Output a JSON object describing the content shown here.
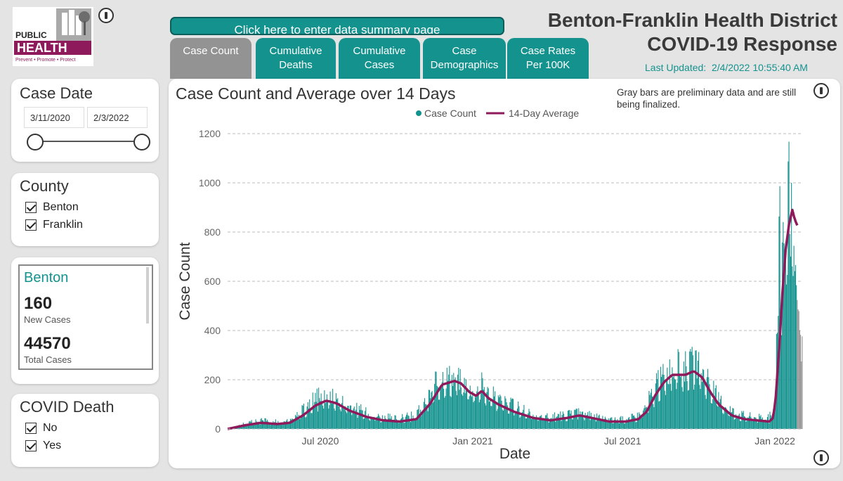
{
  "header": {
    "title_line1": "Benton-Franklin Health District",
    "title_line2": "COVID-19 Response",
    "last_updated_label": "Last Updated:",
    "last_updated_value": "2/4/2022 10:55:40 AM",
    "summary_button": "Click here to enter data summary page"
  },
  "logo": {
    "line1": "PUBLIC",
    "line2": "HEALTH",
    "tagline": "Prevent • Promote • Protect"
  },
  "tabs": [
    {
      "line1": "Case Count",
      "line2": ""
    },
    {
      "line1": "Cumulative",
      "line2": "Deaths"
    },
    {
      "line1": "Cumulative",
      "line2": "Cases"
    },
    {
      "line1": "Case",
      "line2": "Demographics"
    },
    {
      "line1": "Case Rates",
      "line2": "Per 100K"
    }
  ],
  "filters": {
    "case_date": {
      "title": "Case Date",
      "start": "3/11/2020",
      "end": "2/3/2022"
    },
    "county": {
      "title": "County",
      "options": [
        "Benton",
        "Franklin"
      ]
    },
    "covid_death": {
      "title": "COVID Death",
      "options": [
        "No",
        "Yes"
      ]
    }
  },
  "county_card": {
    "name": "Benton",
    "new_cases": "160",
    "new_cases_label": "New Cases",
    "total_cases": "44570",
    "total_cases_label": "Total Cases"
  },
  "colors": {
    "teal": "#13928e",
    "maroon": "#8e1a5c",
    "gray": "#939393"
  },
  "chart_data": {
    "type": "bar",
    "title": "Case Count and Average over 14 Days",
    "note": "Gray bars are preliminary data and are still being finalized.",
    "xlabel": "Date",
    "ylabel": "Case Count",
    "ylim": [
      0,
      1200
    ],
    "yticks": [
      0,
      200,
      400,
      600,
      800,
      1000,
      1200
    ],
    "xticks": [
      {
        "date": "2020-07-01",
        "label": "Jul 2020"
      },
      {
        "date": "2021-01-01",
        "label": "Jan 2021"
      },
      {
        "date": "2021-07-01",
        "label": "Jul 2021"
      },
      {
        "date": "2022-01-01",
        "label": "Jan 2022"
      }
    ],
    "grid": true,
    "legend_position": "top",
    "date_range": [
      "2020-03-11",
      "2022-02-03"
    ],
    "preliminary_from": "2022-01-28",
    "series": [
      {
        "name": "Case Count",
        "type": "bar"
      },
      {
        "name": "14-Day Average",
        "type": "line"
      }
    ],
    "average_curve": [
      [
        "2020-03-11",
        0
      ],
      [
        "2020-04-01",
        15
      ],
      [
        "2020-04-20",
        25
      ],
      [
        "2020-05-10",
        20
      ],
      [
        "2020-05-25",
        25
      ],
      [
        "2020-06-10",
        55
      ],
      [
        "2020-06-25",
        95
      ],
      [
        "2020-07-08",
        115
      ],
      [
        "2020-07-20",
        105
      ],
      [
        "2020-08-05",
        75
      ],
      [
        "2020-08-25",
        50
      ],
      [
        "2020-09-15",
        35
      ],
      [
        "2020-10-05",
        30
      ],
      [
        "2020-10-25",
        40
      ],
      [
        "2020-11-10",
        100
      ],
      [
        "2020-11-25",
        180
      ],
      [
        "2020-12-10",
        195
      ],
      [
        "2020-12-18",
        185
      ],
      [
        "2020-12-28",
        150
      ],
      [
        "2021-01-05",
        135
      ],
      [
        "2021-01-12",
        155
      ],
      [
        "2021-01-20",
        125
      ],
      [
        "2021-02-01",
        100
      ],
      [
        "2021-02-20",
        70
      ],
      [
        "2021-03-15",
        45
      ],
      [
        "2021-04-05",
        35
      ],
      [
        "2021-04-25",
        45
      ],
      [
        "2021-05-10",
        55
      ],
      [
        "2021-05-25",
        45
      ],
      [
        "2021-06-15",
        30
      ],
      [
        "2021-07-05",
        30
      ],
      [
        "2021-07-20",
        40
      ],
      [
        "2021-07-30",
        70
      ],
      [
        "2021-08-10",
        140
      ],
      [
        "2021-08-20",
        190
      ],
      [
        "2021-08-30",
        220
      ],
      [
        "2021-09-15",
        220
      ],
      [
        "2021-09-25",
        235
      ],
      [
        "2021-10-05",
        210
      ],
      [
        "2021-10-15",
        150
      ],
      [
        "2021-10-25",
        100
      ],
      [
        "2021-11-10",
        55
      ],
      [
        "2021-11-25",
        40
      ],
      [
        "2021-12-10",
        35
      ],
      [
        "2021-12-25",
        30
      ],
      [
        "2021-12-30",
        45
      ],
      [
        "2022-01-02",
        130
      ],
      [
        "2022-01-06",
        320
      ],
      [
        "2022-01-10",
        550
      ],
      [
        "2022-01-14",
        730
      ],
      [
        "2022-01-18",
        830
      ],
      [
        "2022-01-22",
        890
      ],
      [
        "2022-01-25",
        850
      ],
      [
        "2022-01-29",
        820
      ]
    ],
    "peak_daily": [
      [
        "2020-03-11",
        0
      ],
      [
        "2020-04-01",
        30
      ],
      [
        "2020-04-20",
        45
      ],
      [
        "2020-05-10",
        40
      ],
      [
        "2020-05-25",
        45
      ],
      [
        "2020-06-10",
        100
      ],
      [
        "2020-06-25",
        160
      ],
      [
        "2020-07-08",
        185
      ],
      [
        "2020-07-20",
        165
      ],
      [
        "2020-08-05",
        130
      ],
      [
        "2020-08-25",
        90
      ],
      [
        "2020-09-15",
        65
      ],
      [
        "2020-10-05",
        60
      ],
      [
        "2020-10-25",
        75
      ],
      [
        "2020-11-10",
        190
      ],
      [
        "2020-11-25",
        285
      ],
      [
        "2020-12-10",
        270
      ],
      [
        "2020-12-18",
        250
      ],
      [
        "2020-12-28",
        215
      ],
      [
        "2021-01-05",
        220
      ],
      [
        "2021-01-12",
        240
      ],
      [
        "2021-01-20",
        190
      ],
      [
        "2021-02-01",
        160
      ],
      [
        "2021-02-20",
        120
      ],
      [
        "2021-03-15",
        80
      ],
      [
        "2021-04-05",
        65
      ],
      [
        "2021-04-25",
        75
      ],
      [
        "2021-05-10",
        85
      ],
      [
        "2021-05-25",
        70
      ],
      [
        "2021-06-15",
        50
      ],
      [
        "2021-07-05",
        55
      ],
      [
        "2021-07-20",
        75
      ],
      [
        "2021-07-30",
        130
      ],
      [
        "2021-08-10",
        220
      ],
      [
        "2021-08-20",
        290
      ],
      [
        "2021-08-30",
        320
      ],
      [
        "2021-09-15",
        330
      ],
      [
        "2021-09-25",
        340
      ],
      [
        "2021-10-05",
        300
      ],
      [
        "2021-10-15",
        220
      ],
      [
        "2021-10-25",
        160
      ],
      [
        "2021-11-10",
        100
      ],
      [
        "2021-11-25",
        75
      ],
      [
        "2021-12-10",
        65
      ],
      [
        "2021-12-25",
        60
      ],
      [
        "2021-12-30",
        110
      ],
      [
        "2022-01-02",
        300
      ],
      [
        "2022-01-05",
        740
      ],
      [
        "2022-01-08",
        1110
      ],
      [
        "2022-01-12",
        1080
      ],
      [
        "2022-01-16",
        1140
      ],
      [
        "2022-01-19",
        1200
      ],
      [
        "2022-01-23",
        870
      ],
      [
        "2022-01-26",
        680
      ],
      [
        "2022-01-29",
        450
      ],
      [
        "2022-02-01",
        320
      ],
      [
        "2022-02-03",
        150
      ]
    ]
  }
}
